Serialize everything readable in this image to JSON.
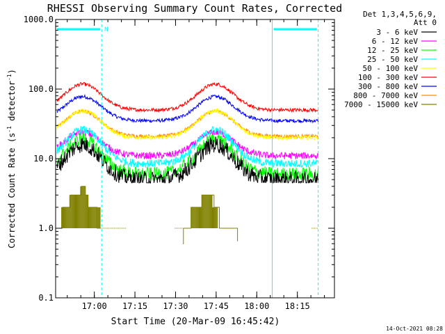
{
  "chart_data": {
    "type": "line",
    "title": "RHESSI Observing Summary Count Rates, Corrected",
    "xlabel": "Start Time (20-Mar-09 16:45:42)",
    "ylabel_main": "Corrected Count Rate (s",
    "ylabel_sup1": "-1",
    "ylabel_mid": " detector",
    "ylabel_sup2": "-1",
    "ylabel_end": ")",
    "yscale": "log",
    "ylim": [
      0.1,
      1000
    ],
    "xlim": [
      0,
      103
    ],
    "y_ticks": [
      {
        "v": 0.1,
        "label": "0.1"
      },
      {
        "v": 1,
        "label": "1.0"
      },
      {
        "v": 10,
        "label": "10.0"
      },
      {
        "v": 100,
        "label": "100.0"
      },
      {
        "v": 1000,
        "label": "1000.0"
      }
    ],
    "x_ticks": [
      {
        "v": 14.3,
        "label": "17:00"
      },
      {
        "v": 29.3,
        "label": "17:15"
      },
      {
        "v": 44.3,
        "label": "17:30"
      },
      {
        "v": 59.3,
        "label": "17:45"
      },
      {
        "v": 74.3,
        "label": "18:00"
      },
      {
        "v": 89.3,
        "label": "18:15"
      }
    ],
    "legend_header": [
      "Det 1,3,4,5,6,9,",
      "Att 0"
    ],
    "legend_position": "top-right",
    "series": [
      {
        "name": "3 - 6 keV",
        "color": "#000000",
        "base": 5.0,
        "peak": 16,
        "noise": 0.12
      },
      {
        "name": "6 - 12 keV",
        "color": "#ff00ff",
        "base": 11.0,
        "peak": 24,
        "noise": 0.05
      },
      {
        "name": "12 - 25 keV",
        "color": "#00ff00",
        "base": 6.0,
        "peak": 19,
        "noise": 0.1
      },
      {
        "name": "25 - 50 keV",
        "color": "#00ffff",
        "base": 8.5,
        "peak": 26,
        "noise": 0.06
      },
      {
        "name": "50 - 100 keV",
        "color": "#ffff00",
        "base": 20.0,
        "peak": 49,
        "noise": 0.03
      },
      {
        "name": "100 - 300 keV",
        "color": "#ff0000",
        "base": 50.0,
        "peak": 118,
        "noise": 0.025
      },
      {
        "name": "300 - 800 keV",
        "color": "#0000ff",
        "base": 35.0,
        "peak": 78,
        "noise": 0.025
      },
      {
        "name": "800 - 7000 keV",
        "color": "#ff8c00",
        "base": 21.0,
        "peak": 48,
        "noise": 0.025
      },
      {
        "name": "7000 - 15000 keV",
        "color": "#808000",
        "base": 1.0,
        "peak": 3,
        "noise": 0
      }
    ],
    "peaks": [
      10,
      59
    ],
    "gaps": [
      [
        17,
        81
      ]
    ],
    "night_flag": "N",
    "attenuator_bars": [
      [
        0,
        17
      ],
      [
        80,
        97
      ]
    ],
    "saa_lines_solid": [
      0,
      80
    ],
    "saa_lines_dashed": [
      17,
      97
    ],
    "footer_date": "14-Oct-2021 08:28",
    "colors": {
      "axis": "#000000",
      "saa": "#00ffff"
    }
  }
}
